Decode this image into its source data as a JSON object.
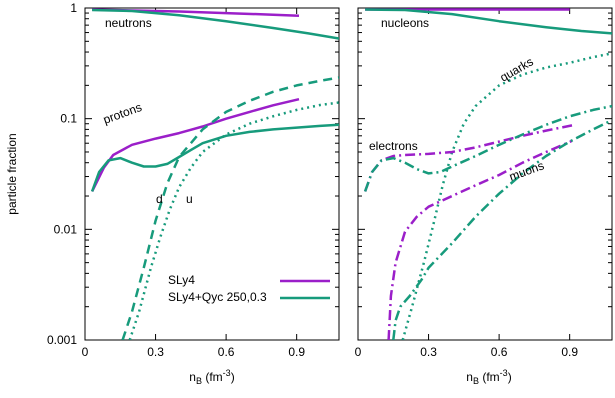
{
  "chart_data": [
    {
      "type": "line",
      "yscale": "log",
      "xlim": [
        0,
        1.08
      ],
      "ylim": [
        0.001,
        1.0
      ],
      "ylabel": "particle fraction",
      "xlabel_main": "n",
      "xlabel_sub": "B",
      "xlabel_unit": " (fm",
      "xlabel_exp": "-3",
      "xlabel_close": ")",
      "xticks": [
        "0",
        "0.3",
        "0.6",
        "0.9"
      ],
      "yticks": [
        "0.001",
        "0.01",
        "0.1",
        "1"
      ],
      "colors": {
        "SLy4": "#9b1fc9",
        "Qyc": "#179b7c"
      },
      "annotations": {
        "neutrons": "neutrons",
        "protons": "protons",
        "d": "d",
        "u": "u"
      },
      "legend": {
        "position": "bottom-right",
        "entries": [
          "SLy4",
          "SLy4+Qyc 250,0.3"
        ]
      },
      "series": [
        {
          "label": "neutrons",
          "model": "SLy4",
          "style": "solid",
          "x": [
            0.03,
            0.2,
            0.4,
            0.6,
            0.8,
            0.91
          ],
          "y": [
            0.97,
            0.95,
            0.93,
            0.9,
            0.87,
            0.85
          ]
        },
        {
          "label": "protons",
          "model": "SLy4",
          "style": "solid",
          "x": [
            0.03,
            0.08,
            0.12,
            0.2,
            0.3,
            0.4,
            0.5,
            0.6,
            0.7,
            0.8,
            0.91
          ],
          "y": [
            0.022,
            0.036,
            0.047,
            0.058,
            0.066,
            0.074,
            0.085,
            0.1,
            0.115,
            0.132,
            0.15
          ]
        },
        {
          "label": "neutrons",
          "model": "Qyc",
          "style": "solid",
          "x": [
            0.03,
            0.2,
            0.4,
            0.6,
            0.8,
            0.95,
            1.08
          ],
          "y": [
            0.96,
            0.94,
            0.86,
            0.76,
            0.66,
            0.59,
            0.53
          ]
        },
        {
          "label": "protons",
          "model": "Qyc",
          "style": "solid",
          "x": [
            0.03,
            0.06,
            0.1,
            0.15,
            0.2,
            0.25,
            0.3,
            0.35,
            0.4,
            0.45,
            0.5,
            0.6,
            0.7,
            0.8,
            0.9,
            1.0,
            1.08
          ],
          "y": [
            0.022,
            0.033,
            0.042,
            0.044,
            0.04,
            0.037,
            0.037,
            0.039,
            0.045,
            0.052,
            0.06,
            0.07,
            0.076,
            0.08,
            0.083,
            0.086,
            0.088
          ]
        },
        {
          "label": "d",
          "model": "Qyc",
          "style": "dashed",
          "x": [
            0.16,
            0.2,
            0.25,
            0.3,
            0.35,
            0.4,
            0.5,
            0.6,
            0.7,
            0.8,
            0.9,
            1.0,
            1.08
          ],
          "y": [
            0.001,
            0.0018,
            0.0045,
            0.012,
            0.026,
            0.045,
            0.08,
            0.115,
            0.145,
            0.175,
            0.2,
            0.22,
            0.235
          ]
        },
        {
          "label": "u",
          "model": "Qyc",
          "style": "dotted",
          "x": [
            0.19,
            0.23,
            0.28,
            0.32,
            0.36,
            0.4,
            0.45,
            0.5,
            0.6,
            0.7,
            0.8,
            0.9,
            1.0,
            1.08
          ],
          "y": [
            0.001,
            0.0018,
            0.0045,
            0.0085,
            0.015,
            0.024,
            0.036,
            0.05,
            0.072,
            0.09,
            0.105,
            0.12,
            0.133,
            0.14
          ]
        }
      ]
    },
    {
      "type": "line",
      "yscale": "log",
      "xlim": [
        0,
        1.08
      ],
      "ylim": [
        0.001,
        1.0
      ],
      "xlabel_main": "n",
      "xlabel_sub": "B",
      "xlabel_unit": " (fm",
      "xlabel_exp": "-3",
      "xlabel_close": ")",
      "xticks": [
        "0",
        "0.3",
        "0.6",
        "0.9"
      ],
      "colors": {
        "SLy4": "#9b1fc9",
        "Qyc": "#179b7c"
      },
      "annotations": {
        "nucleons": "nucleons",
        "quarks": "quarks",
        "electrons": "electrons",
        "muons": "muons"
      },
      "series": [
        {
          "label": "nucleons",
          "model": "SLy4",
          "style": "solid",
          "x": [
            0.03,
            0.3,
            0.6,
            0.9
          ],
          "y": [
            0.97,
            0.97,
            0.97,
            0.97
          ]
        },
        {
          "label": "nucleons",
          "model": "Qyc",
          "style": "solid",
          "x": [
            0.03,
            0.2,
            0.4,
            0.6,
            0.8,
            0.95,
            1.08
          ],
          "y": [
            0.97,
            0.96,
            0.88,
            0.76,
            0.67,
            0.62,
            0.59
          ]
        },
        {
          "label": "quarks",
          "model": "Qyc",
          "style": "dotted",
          "x": [
            0.19,
            0.23,
            0.28,
            0.32,
            0.36,
            0.4,
            0.45,
            0.5,
            0.6,
            0.7,
            0.8,
            0.9,
            1.0,
            1.08
          ],
          "y": [
            0.001,
            0.002,
            0.005,
            0.011,
            0.025,
            0.05,
            0.09,
            0.13,
            0.2,
            0.25,
            0.29,
            0.32,
            0.36,
            0.39
          ]
        },
        {
          "label": "electrons",
          "model": "SLy4",
          "style": "dash-dot",
          "x": [
            0.03,
            0.06,
            0.1,
            0.15,
            0.2,
            0.3,
            0.4,
            0.5,
            0.6,
            0.7,
            0.8,
            0.91
          ],
          "y": [
            0.022,
            0.033,
            0.042,
            0.046,
            0.047,
            0.048,
            0.05,
            0.055,
            0.062,
            0.07,
            0.078,
            0.087
          ]
        },
        {
          "label": "electrons",
          "model": "Qyc",
          "style": "dash-dot",
          "x": [
            0.03,
            0.06,
            0.1,
            0.15,
            0.2,
            0.25,
            0.3,
            0.35,
            0.4,
            0.5,
            0.6,
            0.7,
            0.8,
            0.9,
            1.0,
            1.08
          ],
          "y": [
            0.022,
            0.033,
            0.042,
            0.044,
            0.04,
            0.035,
            0.032,
            0.033,
            0.037,
            0.046,
            0.058,
            0.072,
            0.088,
            0.105,
            0.12,
            0.13
          ]
        },
        {
          "label": "muons",
          "model": "SLy4",
          "style": "dash-dot",
          "x": [
            0.13,
            0.14,
            0.16,
            0.2,
            0.25,
            0.3,
            0.4,
            0.5,
            0.6,
            0.7,
            0.8,
            0.91
          ],
          "y": [
            0.001,
            0.0025,
            0.005,
            0.0095,
            0.013,
            0.016,
            0.02,
            0.025,
            0.031,
            0.04,
            0.05,
            0.063
          ]
        },
        {
          "label": "muons",
          "model": "Qyc",
          "style": "dash-dot",
          "x": [
            0.15,
            0.16,
            0.18,
            0.22,
            0.27,
            0.3,
            0.35,
            0.4,
            0.5,
            0.6,
            0.7,
            0.8,
            0.9,
            1.0,
            1.08
          ],
          "y": [
            0.001,
            0.0015,
            0.002,
            0.0025,
            0.0035,
            0.0045,
            0.0058,
            0.0075,
            0.013,
            0.021,
            0.032,
            0.046,
            0.062,
            0.08,
            0.097
          ]
        }
      ]
    }
  ]
}
